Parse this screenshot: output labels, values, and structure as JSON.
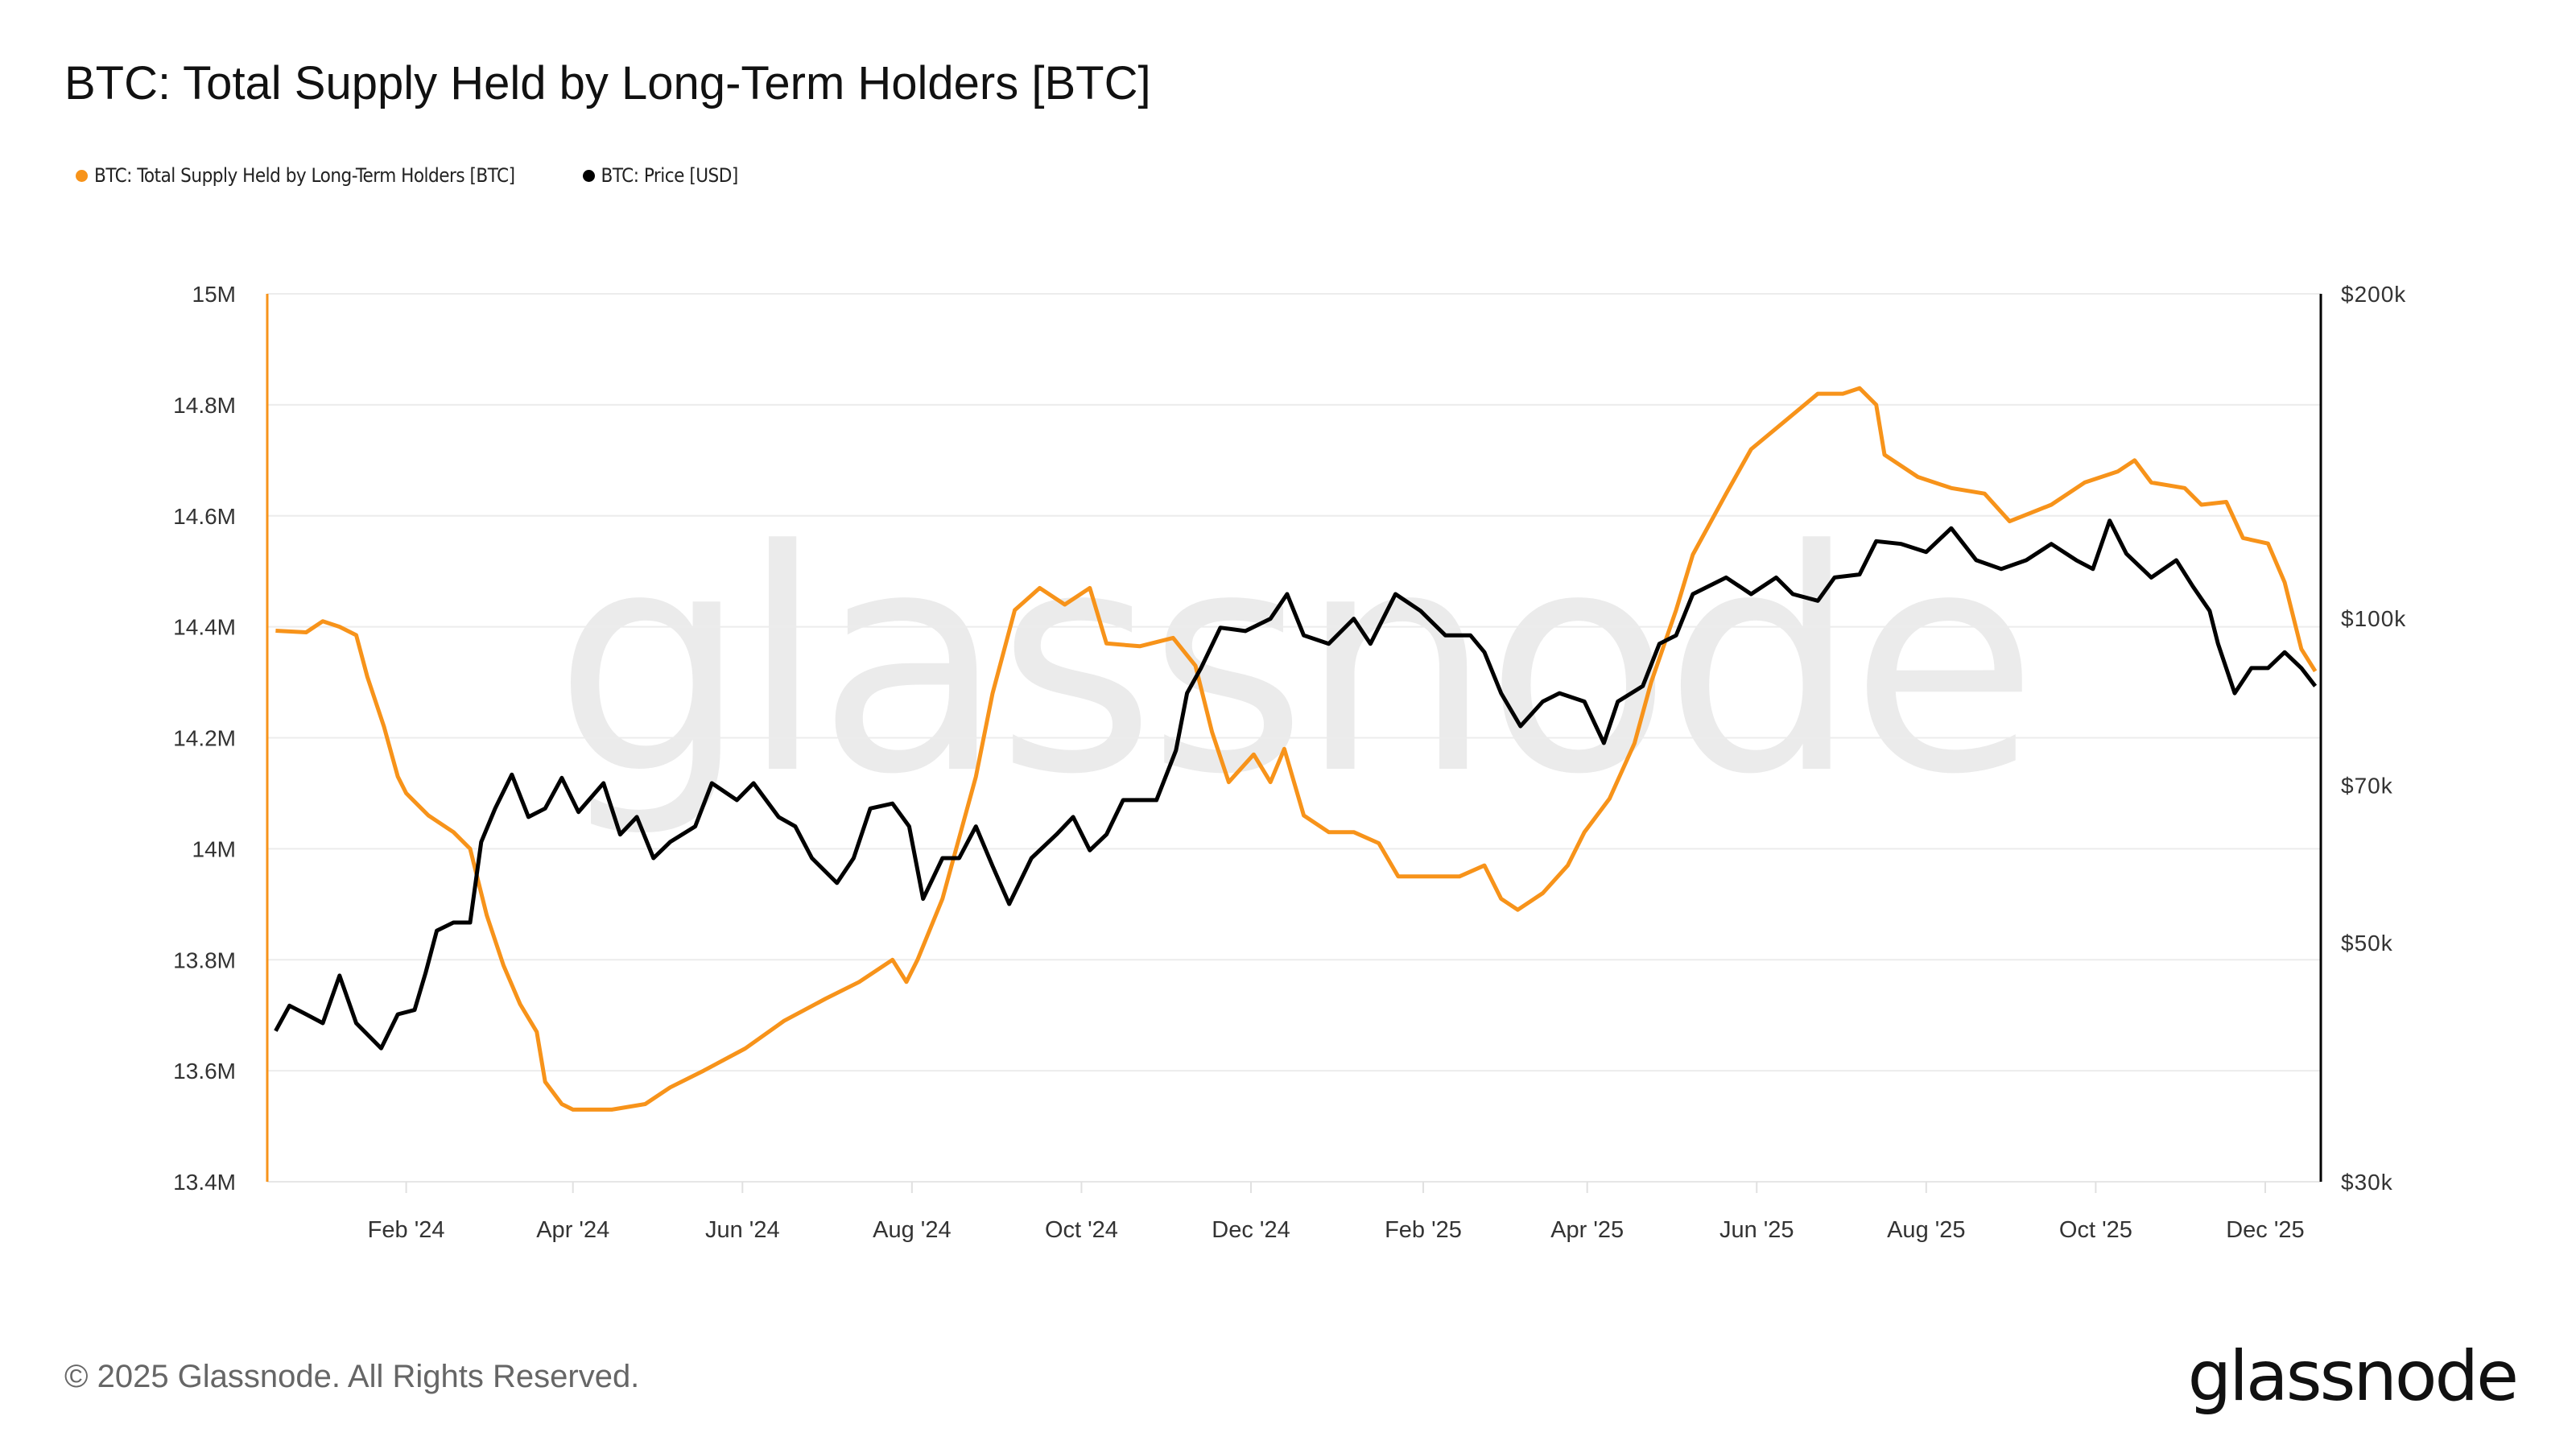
{
  "header": {
    "title": "BTC: Total Supply Held by Long-Term Holders [BTC]"
  },
  "footer": {
    "copyright": "© 2025 Glassnode. All Rights Reserved.",
    "logo": "glassnode",
    "watermark": "glassnode"
  },
  "chart_data": {
    "type": "line",
    "title": "BTC: Total Supply Held by Long-Term Holders [BTC]",
    "xlim": [
      "2023-12-13",
      "2025-12-21"
    ],
    "x_ticks": [
      {
        "date": "2024-02-01",
        "label": "Feb '24"
      },
      {
        "date": "2024-04-01",
        "label": "Apr '24"
      },
      {
        "date": "2024-06-01",
        "label": "Jun '24"
      },
      {
        "date": "2024-08-01",
        "label": "Aug '24"
      },
      {
        "date": "2024-10-01",
        "label": "Oct '24"
      },
      {
        "date": "2024-12-01",
        "label": "Dec '24"
      },
      {
        "date": "2025-02-01",
        "label": "Feb '25"
      },
      {
        "date": "2025-04-01",
        "label": "Apr '25"
      },
      {
        "date": "2025-06-01",
        "label": "Jun '25"
      },
      {
        "date": "2025-08-01",
        "label": "Aug '25"
      },
      {
        "date": "2025-10-01",
        "label": "Oct '25"
      },
      {
        "date": "2025-12-01",
        "label": "Dec '25"
      }
    ],
    "y_left": {
      "scale": "linear",
      "lim": [
        13400000,
        15000000
      ],
      "ticks": [
        {
          "v": 13400000,
          "label": "13.4M"
        },
        {
          "v": 13600000,
          "label": "13.6M"
        },
        {
          "v": 13800000,
          "label": "13.8M"
        },
        {
          "v": 14000000,
          "label": "14M"
        },
        {
          "v": 14200000,
          "label": "14.2M"
        },
        {
          "v": 14400000,
          "label": "14.4M"
        },
        {
          "v": 14600000,
          "label": "14.6M"
        },
        {
          "v": 14800000,
          "label": "14.8M"
        },
        {
          "v": 15000000,
          "label": "15M"
        }
      ]
    },
    "y_right": {
      "scale": "log",
      "lim": [
        30000,
        200000
      ],
      "ticks": [
        {
          "v": 30000,
          "label": "$30k"
        },
        {
          "v": 50000,
          "label": "$50k"
        },
        {
          "v": 70000,
          "label": "$70k"
        },
        {
          "v": 100000,
          "label": "$100k"
        },
        {
          "v": 200000,
          "label": "$200k"
        }
      ]
    },
    "grid": "horizontal",
    "legend_position": "top-left",
    "series": [
      {
        "name": "BTC: Total Supply Held by Long-Term Holders [BTC]",
        "axis": "left",
        "color": "#f7931a",
        "points": [
          [
            "2023-12-16",
            14.393
          ],
          [
            "2023-12-27",
            14.39
          ],
          [
            "2024-01-02",
            14.41
          ],
          [
            "2024-01-08",
            14.4
          ],
          [
            "2024-01-14",
            14.385
          ],
          [
            "2024-01-18",
            14.31
          ],
          [
            "2024-01-24",
            14.22
          ],
          [
            "2024-01-29",
            14.13
          ],
          [
            "2024-02-01",
            14.1
          ],
          [
            "2024-02-09",
            14.06
          ],
          [
            "2024-02-18",
            14.03
          ],
          [
            "2024-02-24",
            14.0
          ],
          [
            "2024-03-01",
            13.88
          ],
          [
            "2024-03-07",
            13.79
          ],
          [
            "2024-03-13",
            13.72
          ],
          [
            "2024-03-19",
            13.67
          ],
          [
            "2024-03-22",
            13.58
          ],
          [
            "2024-03-28",
            13.54
          ],
          [
            "2024-04-01",
            13.53
          ],
          [
            "2024-04-15",
            13.53
          ],
          [
            "2024-04-27",
            13.54
          ],
          [
            "2024-05-06",
            13.57
          ],
          [
            "2024-05-18",
            13.6
          ],
          [
            "2024-06-02",
            13.64
          ],
          [
            "2024-06-16",
            13.69
          ],
          [
            "2024-07-01",
            13.73
          ],
          [
            "2024-07-13",
            13.76
          ],
          [
            "2024-07-25",
            13.8
          ],
          [
            "2024-07-30",
            13.76
          ],
          [
            "2024-08-03",
            13.8
          ],
          [
            "2024-08-12",
            13.91
          ],
          [
            "2024-08-24",
            14.13
          ],
          [
            "2024-08-30",
            14.28
          ],
          [
            "2024-09-07",
            14.43
          ],
          [
            "2024-09-16",
            14.47
          ],
          [
            "2024-09-25",
            14.44
          ],
          [
            "2024-10-04",
            14.47
          ],
          [
            "2024-10-10",
            14.37
          ],
          [
            "2024-10-22",
            14.365
          ],
          [
            "2024-11-03",
            14.38
          ],
          [
            "2024-11-11",
            14.33
          ],
          [
            "2024-11-17",
            14.21
          ],
          [
            "2024-11-23",
            14.12
          ],
          [
            "2024-12-02",
            14.17
          ],
          [
            "2024-12-08",
            14.12
          ],
          [
            "2024-12-13",
            14.18
          ],
          [
            "2024-12-20",
            14.06
          ],
          [
            "2024-12-29",
            14.03
          ],
          [
            "2025-01-07",
            14.03
          ],
          [
            "2025-01-16",
            14.01
          ],
          [
            "2025-01-23",
            13.95
          ],
          [
            "2025-02-05",
            13.95
          ],
          [
            "2025-02-14",
            13.95
          ],
          [
            "2025-02-23",
            13.97
          ],
          [
            "2025-03-01",
            13.91
          ],
          [
            "2025-03-07",
            13.89
          ],
          [
            "2025-03-16",
            13.92
          ],
          [
            "2025-03-25",
            13.97
          ],
          [
            "2025-03-31",
            14.03
          ],
          [
            "2025-04-09",
            14.09
          ],
          [
            "2025-04-18",
            14.19
          ],
          [
            "2025-04-24",
            14.3
          ],
          [
            "2025-05-03",
            14.43
          ],
          [
            "2025-05-09",
            14.53
          ],
          [
            "2025-05-21",
            14.64
          ],
          [
            "2025-05-30",
            14.72
          ],
          [
            "2025-06-11",
            14.77
          ],
          [
            "2025-06-23",
            14.82
          ],
          [
            "2025-07-02",
            14.82
          ],
          [
            "2025-07-08",
            14.83
          ],
          [
            "2025-07-14",
            14.8
          ],
          [
            "2025-07-17",
            14.71
          ],
          [
            "2025-07-29",
            14.67
          ],
          [
            "2025-08-10",
            14.65
          ],
          [
            "2025-08-22",
            14.64
          ],
          [
            "2025-08-31",
            14.59
          ],
          [
            "2025-09-15",
            14.62
          ],
          [
            "2025-09-27",
            14.66
          ],
          [
            "2025-10-09",
            14.68
          ],
          [
            "2025-10-15",
            14.7
          ],
          [
            "2025-10-21",
            14.66
          ],
          [
            "2025-11-02",
            14.65
          ],
          [
            "2025-11-08",
            14.62
          ],
          [
            "2025-11-17",
            14.625
          ],
          [
            "2025-11-23",
            14.56
          ],
          [
            "2025-12-02",
            14.55
          ],
          [
            "2025-12-08",
            14.48
          ],
          [
            "2025-12-14",
            14.36
          ],
          [
            "2025-12-19",
            14.32
          ]
        ]
      },
      {
        "name": "BTC: Price [USD]",
        "axis": "right",
        "color": "#000000",
        "points": [
          [
            "2023-12-16",
            41400
          ],
          [
            "2023-12-21",
            43700
          ],
          [
            "2023-12-27",
            42900
          ],
          [
            "2024-01-02",
            42100
          ],
          [
            "2024-01-08",
            46600
          ],
          [
            "2024-01-14",
            42100
          ],
          [
            "2024-01-23",
            39900
          ],
          [
            "2024-01-29",
            42900
          ],
          [
            "2024-02-04",
            43300
          ],
          [
            "2024-02-08",
            46900
          ],
          [
            "2024-02-12",
            51300
          ],
          [
            "2024-02-18",
            52200
          ],
          [
            "2024-02-24",
            52200
          ],
          [
            "2024-02-28",
            62000
          ],
          [
            "2024-03-04",
            66600
          ],
          [
            "2024-03-10",
            71600
          ],
          [
            "2024-03-16",
            65400
          ],
          [
            "2024-03-22",
            66600
          ],
          [
            "2024-03-28",
            71100
          ],
          [
            "2024-04-03",
            66100
          ],
          [
            "2024-04-12",
            70300
          ],
          [
            "2024-04-18",
            63000
          ],
          [
            "2024-04-24",
            65400
          ],
          [
            "2024-04-30",
            59900
          ],
          [
            "2024-05-06",
            62000
          ],
          [
            "2024-05-15",
            64100
          ],
          [
            "2024-05-21",
            70300
          ],
          [
            "2024-05-30",
            67800
          ],
          [
            "2024-06-05",
            70300
          ],
          [
            "2024-06-14",
            65400
          ],
          [
            "2024-06-20",
            64100
          ],
          [
            "2024-06-26",
            59900
          ],
          [
            "2024-07-05",
            56800
          ],
          [
            "2024-07-11",
            59900
          ],
          [
            "2024-07-17",
            66600
          ],
          [
            "2024-07-25",
            67300
          ],
          [
            "2024-07-31",
            64100
          ],
          [
            "2024-08-05",
            54900
          ],
          [
            "2024-08-12",
            59900
          ],
          [
            "2024-08-18",
            59900
          ],
          [
            "2024-08-24",
            64100
          ],
          [
            "2024-08-30",
            58900
          ],
          [
            "2024-09-05",
            54300
          ],
          [
            "2024-09-13",
            59900
          ],
          [
            "2024-09-22",
            63000
          ],
          [
            "2024-09-28",
            65400
          ],
          [
            "2024-10-04",
            60900
          ],
          [
            "2024-10-10",
            63000
          ],
          [
            "2024-10-16",
            67800
          ],
          [
            "2024-10-28",
            67800
          ],
          [
            "2024-11-04",
            75400
          ],
          [
            "2024-11-08",
            85200
          ],
          [
            "2024-11-13",
            89900
          ],
          [
            "2024-11-20",
            98000
          ],
          [
            "2024-11-29",
            97300
          ],
          [
            "2024-12-08",
            99900
          ],
          [
            "2024-12-14",
            105300
          ],
          [
            "2024-12-20",
            96400
          ],
          [
            "2024-12-29",
            94700
          ],
          [
            "2025-01-07",
            99900
          ],
          [
            "2025-01-13",
            94700
          ],
          [
            "2025-01-22",
            105300
          ],
          [
            "2025-01-31",
            101600
          ],
          [
            "2025-02-09",
            96400
          ],
          [
            "2025-02-18",
            96400
          ],
          [
            "2025-02-23",
            93000
          ],
          [
            "2025-03-01",
            85200
          ],
          [
            "2025-03-08",
            79400
          ],
          [
            "2025-03-16",
            83700
          ],
          [
            "2025-03-22",
            85200
          ],
          [
            "2025-03-31",
            83700
          ],
          [
            "2025-04-07",
            76600
          ],
          [
            "2025-04-12",
            83700
          ],
          [
            "2025-04-21",
            86500
          ],
          [
            "2025-04-27",
            94700
          ],
          [
            "2025-05-03",
            96400
          ],
          [
            "2025-05-09",
            105300
          ],
          [
            "2025-05-21",
            109100
          ],
          [
            "2025-05-30",
            105300
          ],
          [
            "2025-06-08",
            109100
          ],
          [
            "2025-06-14",
            105300
          ],
          [
            "2025-06-23",
            103800
          ],
          [
            "2025-06-29",
            109100
          ],
          [
            "2025-07-08",
            109800
          ],
          [
            "2025-07-14",
            117900
          ],
          [
            "2025-07-23",
            117200
          ],
          [
            "2025-08-01",
            115200
          ],
          [
            "2025-08-10",
            121200
          ],
          [
            "2025-08-19",
            113200
          ],
          [
            "2025-08-28",
            111100
          ],
          [
            "2025-09-06",
            113200
          ],
          [
            "2025-09-15",
            117200
          ],
          [
            "2025-09-24",
            113200
          ],
          [
            "2025-09-30",
            111100
          ],
          [
            "2025-10-06",
            123200
          ],
          [
            "2025-10-12",
            114800
          ],
          [
            "2025-10-21",
            109100
          ],
          [
            "2025-10-30",
            113200
          ],
          [
            "2025-11-05",
            107000
          ],
          [
            "2025-11-11",
            101600
          ],
          [
            "2025-11-14",
            94700
          ],
          [
            "2025-11-20",
            85200
          ],
          [
            "2025-11-26",
            89900
          ],
          [
            "2025-12-02",
            89900
          ],
          [
            "2025-12-08",
            93000
          ],
          [
            "2025-12-14",
            89900
          ],
          [
            "2025-12-19",
            86500
          ]
        ]
      }
    ]
  }
}
